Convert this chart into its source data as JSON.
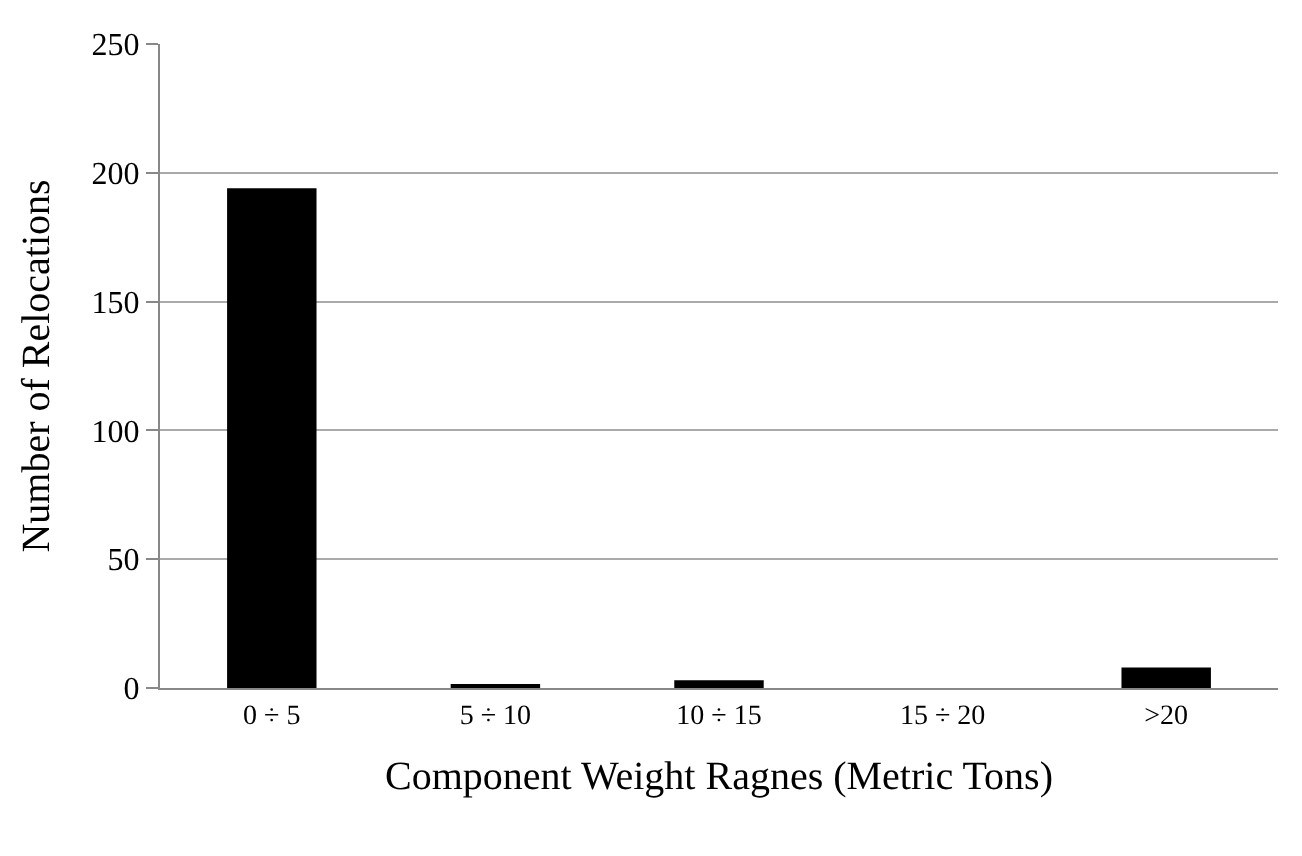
{
  "chart_data": {
    "type": "bar",
    "xlabel": "Component Weight Ragnes (Metric Tons)",
    "ylabel": "Number of Relocations",
    "categories": [
      "0 ÷ 5",
      "5 ÷ 10",
      "10 ÷ 15",
      "15 ÷ 20",
      ">20"
    ],
    "values": [
      194,
      1,
      3,
      0,
      8
    ],
    "color": "#000000",
    "ylim": [
      0,
      250
    ],
    "yticks": [
      0,
      50,
      100,
      150,
      200,
      250
    ],
    "grid": "y",
    "legend": false
  }
}
